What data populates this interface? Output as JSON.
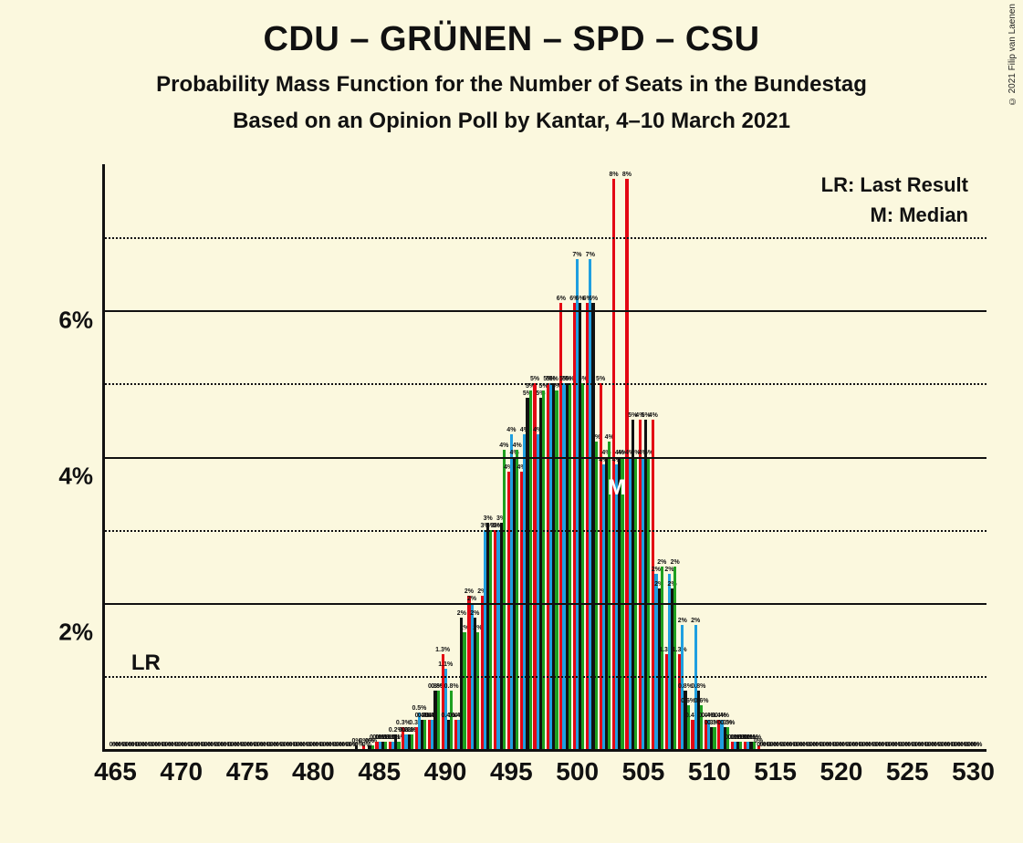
{
  "copyright": "© 2021 Filip van Laenen",
  "title": "CDU – GRÜNEN – SPD – CSU",
  "subtitle": "Probability Mass Function for the Number of Seats in the Bundestag",
  "subtitle2": "Based on an Opinion Poll by Kantar, 4–10 March 2021",
  "legend": {
    "lr": "LR: Last Result",
    "m": "M: Median"
  },
  "markers": {
    "lr": "LR",
    "m": "M"
  },
  "chart": {
    "type": "bar",
    "background_color": "#fbf8de",
    "axis_color": "#111111",
    "grid_major_color": "#111111",
    "grid_minor_color": "#111111",
    "xlim": [
      464,
      531
    ],
    "x_tick_start": 465,
    "x_tick_step": 5,
    "x_ticks": [
      465,
      470,
      475,
      480,
      485,
      490,
      495,
      500,
      505,
      510,
      515,
      520,
      525,
      530
    ],
    "ylim": [
      0,
      8
    ],
    "y_major_ticks": [
      2,
      4,
      6
    ],
    "y_minor_ticks": [
      1,
      3,
      5,
      7
    ],
    "y_tick_labels": {
      "2": "2%",
      "4": "4%",
      "6": "6%"
    },
    "bar_group_width": 0.88,
    "series_colors": [
      "#e30613",
      "#1f9fe0",
      "#111111",
      "#1ea020"
    ],
    "lr_position_x": 466,
    "lr_position_y": 1,
    "median_x": 503,
    "median_series_index": 1,
    "data": [
      {
        "x": 465,
        "v": [
          0,
          0,
          0,
          0
        ],
        "lbl": [
          "0%",
          "0%",
          "0%",
          "0%"
        ]
      },
      {
        "x": 466,
        "v": [
          0,
          0,
          0,
          0
        ],
        "lbl": [
          "0%",
          "0%",
          "0%",
          "0%"
        ]
      },
      {
        "x": 467,
        "v": [
          0,
          0,
          0,
          0
        ],
        "lbl": [
          "0%",
          "0%",
          "0%",
          "0%"
        ]
      },
      {
        "x": 468,
        "v": [
          0,
          0,
          0,
          0
        ],
        "lbl": [
          "0%",
          "0%",
          "0%",
          "0%"
        ]
      },
      {
        "x": 469,
        "v": [
          0,
          0,
          0,
          0
        ],
        "lbl": [
          "0%",
          "0%",
          "0%",
          "0%"
        ]
      },
      {
        "x": 470,
        "v": [
          0,
          0,
          0,
          0
        ],
        "lbl": [
          "0%",
          "0%",
          "0%",
          "0%"
        ]
      },
      {
        "x": 471,
        "v": [
          0,
          0,
          0,
          0
        ],
        "lbl": [
          "0%",
          "0%",
          "0%",
          "0%"
        ]
      },
      {
        "x": 472,
        "v": [
          0,
          0,
          0,
          0
        ],
        "lbl": [
          "0%",
          "0%",
          "0%",
          "0%"
        ]
      },
      {
        "x": 473,
        "v": [
          0,
          0,
          0,
          0
        ],
        "lbl": [
          "0%",
          "0%",
          "0%",
          "0%"
        ]
      },
      {
        "x": 474,
        "v": [
          0,
          0,
          0,
          0
        ],
        "lbl": [
          "0%",
          "0%",
          "0%",
          "0%"
        ]
      },
      {
        "x": 475,
        "v": [
          0,
          0,
          0,
          0
        ],
        "lbl": [
          "0%",
          "0%",
          "0%",
          "0%"
        ]
      },
      {
        "x": 476,
        "v": [
          0,
          0,
          0,
          0
        ],
        "lbl": [
          "0%",
          "0%",
          "0%",
          "0%"
        ]
      },
      {
        "x": 477,
        "v": [
          0,
          0,
          0,
          0
        ],
        "lbl": [
          "0%",
          "0%",
          "0%",
          "0%"
        ]
      },
      {
        "x": 478,
        "v": [
          0,
          0,
          0,
          0
        ],
        "lbl": [
          "0%",
          "0%",
          "0%",
          "0%"
        ]
      },
      {
        "x": 479,
        "v": [
          0,
          0,
          0,
          0
        ],
        "lbl": [
          "0%",
          "0%",
          "0%",
          "0%"
        ]
      },
      {
        "x": 480,
        "v": [
          0,
          0,
          0,
          0
        ],
        "lbl": [
          "0%",
          "0%",
          "0%",
          "0%"
        ]
      },
      {
        "x": 481,
        "v": [
          0,
          0,
          0,
          0
        ],
        "lbl": [
          "0%",
          "0%",
          "0%",
          "0%"
        ]
      },
      {
        "x": 482,
        "v": [
          0,
          0,
          0,
          0
        ],
        "lbl": [
          "0%",
          "0%",
          "0%",
          "0%"
        ]
      },
      {
        "x": 483,
        "v": [
          0,
          0,
          0.05,
          0
        ],
        "lbl": [
          "0%",
          "0%",
          "0%",
          "0%"
        ]
      },
      {
        "x": 484,
        "v": [
          0.05,
          0,
          0.05,
          0.05
        ],
        "lbl": [
          "0%",
          "0%",
          "0%",
          "0%"
        ]
      },
      {
        "x": 485,
        "v": [
          0.1,
          0.1,
          0.1,
          0.1
        ],
        "lbl": [
          "0.1%",
          "0.1%",
          "0.1%",
          "0.1%"
        ]
      },
      {
        "x": 486,
        "v": [
          0.1,
          0.1,
          0.2,
          0.1
        ],
        "lbl": [
          "0.1%",
          "0.1%",
          "0.2%",
          "0.1%"
        ]
      },
      {
        "x": 487,
        "v": [
          0.3,
          0.2,
          0.2,
          0.2
        ],
        "lbl": [
          "0.3%",
          "0.2%",
          "0.2%",
          "0.2%"
        ]
      },
      {
        "x": 488,
        "v": [
          0.3,
          0.5,
          0.4,
          0.4
        ],
        "lbl": [
          "0.3%",
          "0.5%",
          "0.4%",
          "0.4%"
        ]
      },
      {
        "x": 489,
        "v": [
          0.4,
          0.4,
          0.8,
          0.8
        ],
        "lbl": [
          "0.4%",
          "0.4%",
          "0.8%",
          "0.8%"
        ]
      },
      {
        "x": 490,
        "v": [
          1.3,
          1.1,
          0.4,
          0.8
        ],
        "lbl": [
          "1.3%",
          "1.1%",
          "0.4%",
          "0.8%"
        ]
      },
      {
        "x": 491,
        "v": [
          0.4,
          0.4,
          1.8,
          1.6
        ],
        "lbl": [
          "0.4%",
          "0.4%",
          "2%",
          "2%"
        ]
      },
      {
        "x": 492,
        "v": [
          2.1,
          2,
          1.8,
          1.6
        ],
        "lbl": [
          "2%",
          "2%",
          "2%",
          "2%"
        ]
      },
      {
        "x": 493,
        "v": [
          2.1,
          3,
          3.1,
          3
        ],
        "lbl": [
          "2%",
          "3%",
          "3%",
          "3%"
        ]
      },
      {
        "x": 494,
        "v": [
          3,
          3,
          3.1,
          4.1
        ],
        "lbl": [
          "3%",
          "3%",
          "3%",
          "4%"
        ]
      },
      {
        "x": 495,
        "v": [
          3.8,
          4.3,
          4,
          4.1
        ],
        "lbl": [
          "4%",
          "4%",
          "4%",
          "4%"
        ]
      },
      {
        "x": 496,
        "v": [
          3.8,
          4.3,
          4.8,
          4.9
        ],
        "lbl": [
          "4%",
          "4%",
          "5%",
          "5%"
        ]
      },
      {
        "x": 497,
        "v": [
          5,
          4.3,
          4.8,
          4.9
        ],
        "lbl": [
          "5%",
          "4%",
          "5%",
          "5%"
        ]
      },
      {
        "x": 498,
        "v": [
          5,
          5,
          5,
          4.9
        ],
        "lbl": [
          "5%",
          "5%",
          "5%",
          "5%"
        ]
      },
      {
        "x": 499,
        "v": [
          6.1,
          5,
          5,
          5
        ],
        "lbl": [
          "6%",
          "5%",
          "5%",
          "5%"
        ]
      },
      {
        "x": 500,
        "v": [
          6.1,
          6.7,
          6.1,
          5
        ],
        "lbl": [
          "6%",
          "7%",
          "6%",
          "5%"
        ]
      },
      {
        "x": 501,
        "v": [
          6.1,
          6.7,
          6.1,
          4.2
        ],
        "lbl": [
          "6%",
          "7%",
          "6%",
          "4%"
        ]
      },
      {
        "x": 502,
        "v": [
          5,
          3.9,
          4,
          4.2
        ],
        "lbl": [
          "5%",
          "4%",
          "4%",
          "4%"
        ]
      },
      {
        "x": 503,
        "v": [
          7.8,
          3.9,
          4,
          4
        ],
        "lbl": [
          "8%",
          "4%",
          "4%",
          "4%"
        ]
      },
      {
        "x": 504,
        "v": [
          7.8,
          4,
          4.5,
          4
        ],
        "lbl": [
          "8%",
          "4%",
          "5%",
          "4%"
        ]
      },
      {
        "x": 505,
        "v": [
          4.5,
          4,
          4.5,
          4
        ],
        "lbl": [
          "4%",
          "4%",
          "5%",
          "4%"
        ]
      },
      {
        "x": 506,
        "v": [
          4.5,
          2.4,
          2.2,
          2.5
        ],
        "lbl": [
          "4%",
          "2%",
          "2%",
          "2%"
        ]
      },
      {
        "x": 507,
        "v": [
          1.3,
          2.4,
          2.2,
          2.5
        ],
        "lbl": [
          "1.3%",
          "2%",
          "2%",
          "2%"
        ]
      },
      {
        "x": 508,
        "v": [
          1.3,
          1.7,
          0.8,
          0.6
        ],
        "lbl": [
          "1.3%",
          "2%",
          "0.8%",
          "0.6%"
        ]
      },
      {
        "x": 509,
        "v": [
          0.4,
          1.7,
          0.8,
          0.6
        ],
        "lbl": [
          "0.4%",
          "2%",
          "0.8%",
          "0.6%"
        ]
      },
      {
        "x": 510,
        "v": [
          0.4,
          0.4,
          0.3,
          0.3
        ],
        "lbl": [
          "0.4%",
          "0.4%",
          "0.3%",
          "0.3%"
        ]
      },
      {
        "x": 511,
        "v": [
          0.4,
          0.4,
          0.3,
          0.3
        ],
        "lbl": [
          "0.4%",
          "0.4%",
          "0.3%",
          "0.3%"
        ]
      },
      {
        "x": 512,
        "v": [
          0.1,
          0.1,
          0.1,
          0.1
        ],
        "lbl": [
          "0.1%",
          "0.1%",
          "0.1%",
          "0.1%"
        ]
      },
      {
        "x": 513,
        "v": [
          0.1,
          0.1,
          0.1,
          0.1
        ],
        "lbl": [
          "0.1%",
          "0.1%",
          "0.1%",
          "0.1%"
        ]
      },
      {
        "x": 514,
        "v": [
          0.05,
          0,
          0,
          0
        ],
        "lbl": [
          "0%",
          "0%",
          "0%",
          "0%"
        ]
      },
      {
        "x": 515,
        "v": [
          0,
          0,
          0,
          0
        ],
        "lbl": [
          "0%",
          "0%",
          "0%",
          "0%"
        ]
      },
      {
        "x": 516,
        "v": [
          0,
          0,
          0,
          0
        ],
        "lbl": [
          "0%",
          "0%",
          "0%",
          "0%"
        ]
      },
      {
        "x": 517,
        "v": [
          0,
          0,
          0,
          0
        ],
        "lbl": [
          "0%",
          "0%",
          "0%",
          "0%"
        ]
      },
      {
        "x": 518,
        "v": [
          0,
          0,
          0,
          0
        ],
        "lbl": [
          "0%",
          "0%",
          "0%",
          "0%"
        ]
      },
      {
        "x": 519,
        "v": [
          0,
          0,
          0,
          0
        ],
        "lbl": [
          "0%",
          "0%",
          "0%",
          "0%"
        ]
      },
      {
        "x": 520,
        "v": [
          0,
          0,
          0,
          0
        ],
        "lbl": [
          "0%",
          "0%",
          "0%",
          "0%"
        ]
      },
      {
        "x": 521,
        "v": [
          0,
          0,
          0,
          0
        ],
        "lbl": [
          "0%",
          "0%",
          "0%",
          "0%"
        ]
      },
      {
        "x": 522,
        "v": [
          0,
          0,
          0,
          0
        ],
        "lbl": [
          "0%",
          "0%",
          "0%",
          "0%"
        ]
      },
      {
        "x": 523,
        "v": [
          0,
          0,
          0,
          0
        ],
        "lbl": [
          "0%",
          "0%",
          "0%",
          "0%"
        ]
      },
      {
        "x": 524,
        "v": [
          0,
          0,
          0,
          0
        ],
        "lbl": [
          "0%",
          "0%",
          "0%",
          "0%"
        ]
      },
      {
        "x": 525,
        "v": [
          0,
          0,
          0,
          0
        ],
        "lbl": [
          "0%",
          "0%",
          "0%",
          "0%"
        ]
      },
      {
        "x": 526,
        "v": [
          0,
          0,
          0,
          0
        ],
        "lbl": [
          "0%",
          "0%",
          "0%",
          "0%"
        ]
      },
      {
        "x": 527,
        "v": [
          0,
          0,
          0,
          0
        ],
        "lbl": [
          "0%",
          "0%",
          "0%",
          "0%"
        ]
      },
      {
        "x": 528,
        "v": [
          0,
          0,
          0,
          0
        ],
        "lbl": [
          "0%",
          "0%",
          "0%",
          "0%"
        ]
      },
      {
        "x": 529,
        "v": [
          0,
          0,
          0,
          0
        ],
        "lbl": [
          "0%",
          "0%",
          "0%",
          "0%"
        ]
      },
      {
        "x": 530,
        "v": [
          0,
          0,
          0,
          0
        ],
        "lbl": [
          "0%",
          "0%",
          "0%",
          "0%"
        ]
      }
    ],
    "data_override": [
      {
        "x": 491,
        "v": [
          0.4,
          0.4,
          1.8,
          1.6
        ],
        "lbl": [
          "0.4%",
          "0.4%",
          "2%",
          "2%"
        ]
      },
      {
        "x": 505,
        "v": [
          4.5,
          4,
          4.5,
          4
        ],
        "lbl": [
          "4%",
          "4%",
          "5%",
          "4%"
        ]
      }
    ]
  }
}
